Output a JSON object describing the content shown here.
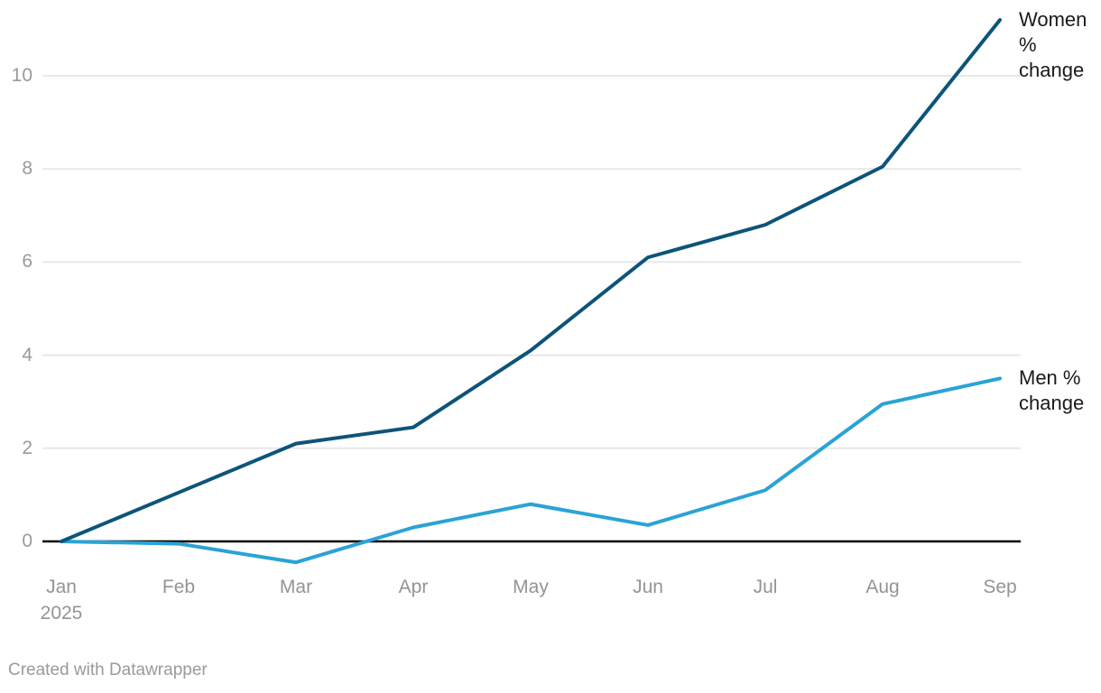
{
  "chart_data": {
    "type": "line",
    "categories": [
      "Jan 2025",
      "Feb",
      "Mar",
      "Apr",
      "May",
      "Jun",
      "Jul",
      "Aug",
      "Sep"
    ],
    "x_tick_labels": [
      {
        "text": "Jan",
        "subtext": "2025"
      },
      {
        "text": "Feb"
      },
      {
        "text": "Mar"
      },
      {
        "text": "Apr"
      },
      {
        "text": "May"
      },
      {
        "text": "Jun"
      },
      {
        "text": "Jul"
      },
      {
        "text": "Aug"
      },
      {
        "text": "Sep"
      }
    ],
    "y_ticks": [
      0,
      2,
      4,
      6,
      8,
      10
    ],
    "ylim": [
      -0.6,
      11.35
    ],
    "grid": "horizontal",
    "legend_position": "line-end-labels",
    "series": [
      {
        "name": "Women % change",
        "color": "#0d547a",
        "values": [
          0,
          1.05,
          2.1,
          2.45,
          4.1,
          6.1,
          6.8,
          8.05,
          11.2
        ]
      },
      {
        "name": "Men % change",
        "color": "#2aa3d6",
        "values": [
          0,
          -0.05,
          -0.45,
          0.3,
          0.8,
          0.35,
          1.1,
          2.95,
          3.5
        ]
      }
    ],
    "colors": {
      "grid_line": "#e8e8e8",
      "zero_line": "#000000",
      "axis_text": "#9a9a9a",
      "label_text": "#1a1a1a"
    }
  },
  "footer": {
    "credit": "Created with Datawrapper"
  }
}
